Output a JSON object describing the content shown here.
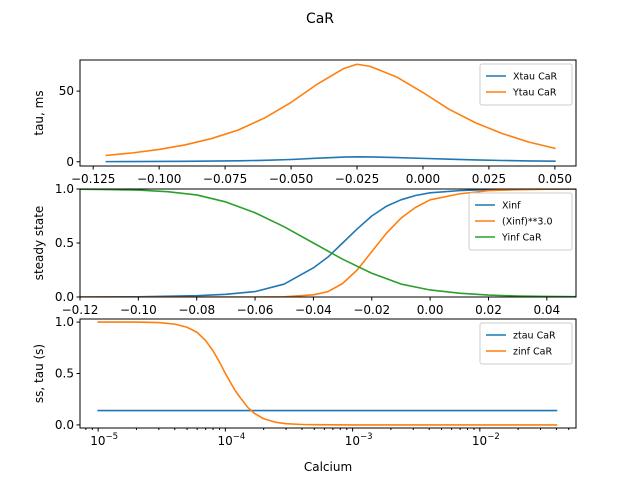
{
  "figure": {
    "title": "CaR"
  },
  "chart_data": [
    {
      "type": "line",
      "ylabel": "tau, ms",
      "xlabel": "",
      "xlim": [
        -0.13,
        0.058
      ],
      "ylim": [
        -3,
        72
      ],
      "xticks": [
        -0.125,
        -0.1,
        -0.075,
        -0.05,
        -0.025,
        0.0,
        0.025,
        0.05
      ],
      "xtick_labels": [
        "−0.125",
        "−0.100",
        "−0.075",
        "−0.050",
        "−0.025",
        "0.000",
        "0.025",
        "0.050"
      ],
      "yticks": [
        0,
        50
      ],
      "ytick_labels": [
        "0",
        "50"
      ],
      "legend": "top-right",
      "x_scale": "linear",
      "series": [
        {
          "name": "Xtau CaR",
          "color": "#1f77b4",
          "x": [
            -0.12,
            -0.11,
            -0.1,
            -0.09,
            -0.08,
            -0.07,
            -0.06,
            -0.05,
            -0.04,
            -0.03,
            -0.025,
            -0.02,
            -0.01,
            0.0,
            0.01,
            0.02,
            0.03,
            0.04,
            0.05
          ],
          "y": [
            0.1,
            0.15,
            0.2,
            0.3,
            0.5,
            0.7,
            1.0,
            1.6,
            2.5,
            3.3,
            3.5,
            3.4,
            3.0,
            2.4,
            1.8,
            1.3,
            0.9,
            0.6,
            0.4
          ]
        },
        {
          "name": "Ytau CaR",
          "color": "#ff7f0e",
          "x": [
            -0.12,
            -0.11,
            -0.1,
            -0.09,
            -0.08,
            -0.07,
            -0.06,
            -0.05,
            -0.04,
            -0.03,
            -0.025,
            -0.02,
            -0.01,
            0.0,
            0.01,
            0.02,
            0.03,
            0.04,
            0.05
          ],
          "y": [
            4.5,
            6.3,
            8.7,
            12.0,
            16.5,
            22.5,
            31.0,
            42.0,
            55.0,
            66.0,
            69.0,
            67.5,
            60.0,
            49.0,
            37.0,
            27.5,
            20.0,
            14.0,
            9.5
          ]
        }
      ]
    },
    {
      "type": "line",
      "ylabel": "steady state",
      "xlabel": "",
      "xlim": [
        -0.12,
        0.05
      ],
      "ylim": [
        0,
        1.0
      ],
      "xticks": [
        -0.12,
        -0.1,
        -0.08,
        -0.06,
        -0.04,
        -0.02,
        0.0,
        0.02,
        0.04
      ],
      "xtick_labels": [
        "−0.12",
        "−0.10",
        "−0.08",
        "−0.06",
        "−0.04",
        "−0.02",
        "0.00",
        "0.02",
        "0.04"
      ],
      "yticks": [
        0.0,
        0.5,
        1.0
      ],
      "ytick_labels": [
        "0.0",
        "0.5",
        "1.0"
      ],
      "legend": "top-right",
      "x_scale": "linear",
      "series": [
        {
          "name": "Xinf",
          "color": "#1f77b4",
          "x": [
            -0.12,
            -0.1,
            -0.08,
            -0.07,
            -0.06,
            -0.05,
            -0.04,
            -0.035,
            -0.03,
            -0.025,
            -0.02,
            -0.015,
            -0.01,
            -0.005,
            0.0,
            0.01,
            0.02,
            0.03,
            0.04,
            0.05
          ],
          "y": [
            0.0,
            0.002,
            0.012,
            0.025,
            0.05,
            0.12,
            0.27,
            0.37,
            0.5,
            0.63,
            0.75,
            0.84,
            0.9,
            0.94,
            0.965,
            0.985,
            0.995,
            0.998,
            1.0,
            1.0
          ]
        },
        {
          "name": "(Xinf)**3.0",
          "color": "#ff7f0e",
          "x": [
            -0.12,
            -0.08,
            -0.06,
            -0.05,
            -0.04,
            -0.035,
            -0.03,
            -0.025,
            -0.02,
            -0.015,
            -0.01,
            -0.005,
            0.0,
            0.01,
            0.02,
            0.03,
            0.04,
            0.05
          ],
          "y": [
            0.0,
            0.0,
            0.0,
            0.002,
            0.02,
            0.05,
            0.125,
            0.25,
            0.42,
            0.59,
            0.73,
            0.83,
            0.9,
            0.955,
            0.985,
            0.994,
            0.998,
            1.0
          ]
        },
        {
          "name": "Yinf CaR",
          "color": "#2ca02c",
          "x": [
            -0.12,
            -0.11,
            -0.1,
            -0.09,
            -0.08,
            -0.07,
            -0.06,
            -0.05,
            -0.04,
            -0.03,
            -0.02,
            -0.01,
            0.0,
            0.01,
            0.02,
            0.03,
            0.04,
            0.05
          ],
          "y": [
            0.998,
            0.995,
            0.99,
            0.975,
            0.945,
            0.88,
            0.78,
            0.65,
            0.5,
            0.35,
            0.22,
            0.12,
            0.065,
            0.035,
            0.018,
            0.009,
            0.005,
            0.003
          ]
        }
      ]
    },
    {
      "type": "line",
      "ylabel": "ss, tau (s)",
      "xlabel": "Calcium",
      "xlim": [
        7.2e-06,
        0.057
      ],
      "ylim": [
        -0.03,
        1.03
      ],
      "xticks": [
        1e-05,
        0.0001,
        0.001,
        0.01
      ],
      "xtick_labels": [
        "10",
        "10",
        "10",
        "10"
      ],
      "xtick_exponents": [
        "−5",
        "−4",
        "−3",
        "−2"
      ],
      "yticks": [
        0.0,
        0.5,
        1.0
      ],
      "ytick_labels": [
        "0.0",
        "0.5",
        "1.0"
      ],
      "legend": "top-right",
      "x_scale": "log",
      "series": [
        {
          "name": "ztau CaR",
          "color": "#1f77b4",
          "x": [
            1e-05,
            0.0001,
            0.001,
            0.01,
            0.04
          ],
          "y": [
            0.14,
            0.14,
            0.14,
            0.14,
            0.14
          ]
        },
        {
          "name": "zinf CaR",
          "color": "#ff7f0e",
          "x": [
            1e-05,
            2e-05,
            3e-05,
            4e-05,
            5e-05,
            6e-05,
            7e-05,
            8e-05,
            9e-05,
            0.0001,
            0.00011,
            0.00012,
            0.00013,
            0.00015,
            0.00017,
            0.0002,
            0.00025,
            0.0003,
            0.0004,
            0.0005,
            0.001,
            0.01,
            0.04
          ],
          "y": [
            1.0,
            1.0,
            0.995,
            0.98,
            0.95,
            0.9,
            0.82,
            0.72,
            0.61,
            0.5,
            0.41,
            0.33,
            0.27,
            0.17,
            0.11,
            0.06,
            0.025,
            0.012,
            0.004,
            0.002,
            0.0,
            0.0,
            0.0
          ]
        }
      ]
    }
  ]
}
